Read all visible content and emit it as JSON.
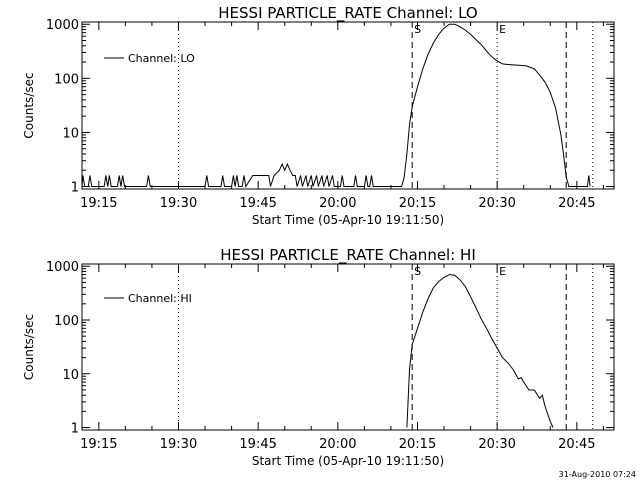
{
  "footer": {
    "timestamp": "31-Aug-2010 07:24"
  },
  "chart_data": [
    {
      "type": "line",
      "title": "HESSI PARTICLE_RATE Channel: LO",
      "xlabel": "Start Time (05-Apr-10 19:11:50)",
      "ylabel": "Counts/sec",
      "yscale": "log",
      "xlim": [
        "19:11:50",
        "20:52:00"
      ],
      "ylim": [
        0.9,
        1100
      ],
      "x_ticks": [
        "19:15",
        "19:30",
        "19:45",
        "20:00",
        "20:15",
        "20:30",
        "20:45"
      ],
      "y_ticks": [
        "1",
        "10",
        "100",
        "1000"
      ],
      "legend": {
        "position": "top-left",
        "entries": [
          "Channel: LO"
        ]
      },
      "vlines": [
        {
          "time": "19:30:00",
          "style": "dotted"
        },
        {
          "time": "20:14:00",
          "style": "dashed",
          "label": "S"
        },
        {
          "time": "20:30:00",
          "style": "dotted",
          "label": "E"
        },
        {
          "time": "20:43:00",
          "style": "dashed"
        },
        {
          "time": "20:48:00",
          "style": "dotted"
        }
      ],
      "series": [
        {
          "name": "Channel: LO",
          "points": [
            [
              "19:11:50",
              1
            ],
            [
              "19:12:00",
              1.6
            ],
            [
              "19:12:20",
              1
            ],
            [
              "19:13:00",
              1
            ],
            [
              "19:13:20",
              1.6
            ],
            [
              "19:13:40",
              1
            ],
            [
              "19:16:00",
              1
            ],
            [
              "19:16:20",
              1.6
            ],
            [
              "19:16:40",
              1
            ],
            [
              "19:17:00",
              1.6
            ],
            [
              "19:17:20",
              1
            ],
            [
              "19:18:30",
              1
            ],
            [
              "19:18:50",
              1.6
            ],
            [
              "19:19:10",
              1
            ],
            [
              "19:19:30",
              1.6
            ],
            [
              "19:19:50",
              1
            ],
            [
              "19:24:00",
              1
            ],
            [
              "19:24:20",
              1.6
            ],
            [
              "19:24:40",
              1
            ],
            [
              "19:35:00",
              1
            ],
            [
              "19:35:20",
              1.6
            ],
            [
              "19:35:40",
              1
            ],
            [
              "19:38:00",
              1
            ],
            [
              "19:38:20",
              1.6
            ],
            [
              "19:38:40",
              1
            ],
            [
              "19:40:00",
              1
            ],
            [
              "19:40:20",
              1.6
            ],
            [
              "19:40:40",
              1
            ],
            [
              "19:41:00",
              1.6
            ],
            [
              "19:41:20",
              1
            ],
            [
              "19:42:00",
              1
            ],
            [
              "19:42:20",
              1.6
            ],
            [
              "19:42:40",
              1
            ],
            [
              "19:44:00",
              1.6
            ],
            [
              "19:47:00",
              1.6
            ],
            [
              "19:47:20",
              1
            ],
            [
              "19:48:00",
              1.6
            ],
            [
              "19:49:00",
              2
            ],
            [
              "19:49:30",
              2.6
            ],
            [
              "19:50:00",
              2
            ],
            [
              "19:50:30",
              2.6
            ],
            [
              "19:51:00",
              2
            ],
            [
              "19:51:30",
              1.6
            ],
            [
              "19:52:00",
              1.6
            ],
            [
              "19:52:20",
              1
            ],
            [
              "19:53:00",
              1.6
            ],
            [
              "19:53:20",
              1
            ],
            [
              "19:54:00",
              1.6
            ],
            [
              "19:54:20",
              1
            ],
            [
              "19:55:00",
              1.6
            ],
            [
              "19:55:20",
              1
            ],
            [
              "19:56:00",
              1.6
            ],
            [
              "19:56:20",
              1
            ],
            [
              "19:57:00",
              1.6
            ],
            [
              "19:57:20",
              1
            ],
            [
              "19:58:00",
              1.6
            ],
            [
              "19:58:20",
              1
            ],
            [
              "19:59:00",
              1.6
            ],
            [
              "19:59:20",
              1
            ],
            [
              "20:00:30",
              1
            ],
            [
              "20:00:50",
              1.6
            ],
            [
              "20:01:10",
              1
            ],
            [
              "20:03:00",
              1
            ],
            [
              "20:03:20",
              1.6
            ],
            [
              "20:03:40",
              1
            ],
            [
              "20:05:00",
              1
            ],
            [
              "20:05:20",
              1.6
            ],
            [
              "20:05:40",
              1
            ],
            [
              "20:06:00",
              1
            ],
            [
              "20:06:20",
              1.6
            ],
            [
              "20:06:40",
              1
            ],
            [
              "20:12:00",
              1
            ],
            [
              "20:12:30",
              1.5
            ],
            [
              "20:13:00",
              4
            ],
            [
              "20:13:30",
              14
            ],
            [
              "20:14:00",
              30
            ],
            [
              "20:15:00",
              70
            ],
            [
              "20:16:00",
              150
            ],
            [
              "20:17:00",
              280
            ],
            [
              "20:18:00",
              450
            ],
            [
              "20:19:00",
              650
            ],
            [
              "20:20:00",
              850
            ],
            [
              "20:21:00",
              1000
            ],
            [
              "20:22:00",
              1000
            ],
            [
              "20:23:00",
              900
            ],
            [
              "20:24:00",
              780
            ],
            [
              "20:25:00",
              650
            ],
            [
              "20:26:00",
              520
            ],
            [
              "20:27:00",
              420
            ],
            [
              "20:28:00",
              320
            ],
            [
              "20:29:00",
              250
            ],
            [
              "20:30:00",
              210
            ],
            [
              "20:31:00",
              185
            ],
            [
              "20:32:00",
              180
            ],
            [
              "20:34:00",
              175
            ],
            [
              "20:35:30",
              170
            ],
            [
              "20:37:00",
              150
            ],
            [
              "20:38:00",
              115
            ],
            [
              "20:39:00",
              85
            ],
            [
              "20:40:00",
              55
            ],
            [
              "20:41:00",
              28
            ],
            [
              "20:42:00",
              9
            ],
            [
              "20:42:30",
              4
            ],
            [
              "20:43:00",
              1.5
            ],
            [
              "20:43:30",
              1
            ],
            [
              "20:47:00",
              1
            ],
            [
              "20:47:15",
              1.6
            ],
            [
              "20:47:30",
              1
            ]
          ]
        }
      ]
    },
    {
      "type": "line",
      "title": "HESSI PARTICLE_RATE Channel: HI",
      "xlabel": "Start Time (05-Apr-10 19:11:50)",
      "ylabel": "Counts/sec",
      "yscale": "log",
      "xlim": [
        "19:11:50",
        "20:52:00"
      ],
      "ylim": [
        0.9,
        1100
      ],
      "x_ticks": [
        "19:15",
        "19:30",
        "19:45",
        "20:00",
        "20:15",
        "20:30",
        "20:45"
      ],
      "y_ticks": [
        "1",
        "10",
        "100",
        "1000"
      ],
      "legend": {
        "position": "top-left",
        "entries": [
          "Channel: HI"
        ]
      },
      "vlines": [
        {
          "time": "19:30:00",
          "style": "dotted"
        },
        {
          "time": "20:14:00",
          "style": "dashed",
          "label": "S"
        },
        {
          "time": "20:30:00",
          "style": "dotted",
          "label": "E"
        },
        {
          "time": "20:43:00",
          "style": "dashed"
        },
        {
          "time": "20:48:00",
          "style": "dotted"
        }
      ],
      "series": [
        {
          "name": "Channel: HI",
          "points": [
            [
              "20:13:00",
              1
            ],
            [
              "20:13:30",
              12
            ],
            [
              "20:14:00",
              35
            ],
            [
              "20:15:00",
              70
            ],
            [
              "20:16:00",
              140
            ],
            [
              "20:17:00",
              250
            ],
            [
              "20:18:00",
              400
            ],
            [
              "20:19:00",
              520
            ],
            [
              "20:20:00",
              620
            ],
            [
              "20:21:00",
              700
            ],
            [
              "20:22:00",
              680
            ],
            [
              "20:23:00",
              560
            ],
            [
              "20:24:00",
              420
            ],
            [
              "20:25:00",
              270
            ],
            [
              "20:26:00",
              170
            ],
            [
              "20:27:00",
              105
            ],
            [
              "20:28:00",
              70
            ],
            [
              "20:29:00",
              45
            ],
            [
              "20:30:00",
              30
            ],
            [
              "20:31:00",
              20
            ],
            [
              "20:32:00",
              16
            ],
            [
              "20:33:00",
              12
            ],
            [
              "20:34:00",
              8
            ],
            [
              "20:34:30",
              8.5
            ],
            [
              "20:35:00",
              7
            ],
            [
              "20:36:00",
              5
            ],
            [
              "20:37:00",
              5
            ],
            [
              "20:38:00",
              3.5
            ],
            [
              "20:38:30",
              4
            ],
            [
              "20:39:00",
              2.5
            ],
            [
              "20:39:30",
              1.8
            ],
            [
              "20:40:00",
              1.3
            ],
            [
              "20:40:30",
              1
            ]
          ]
        }
      ]
    }
  ]
}
